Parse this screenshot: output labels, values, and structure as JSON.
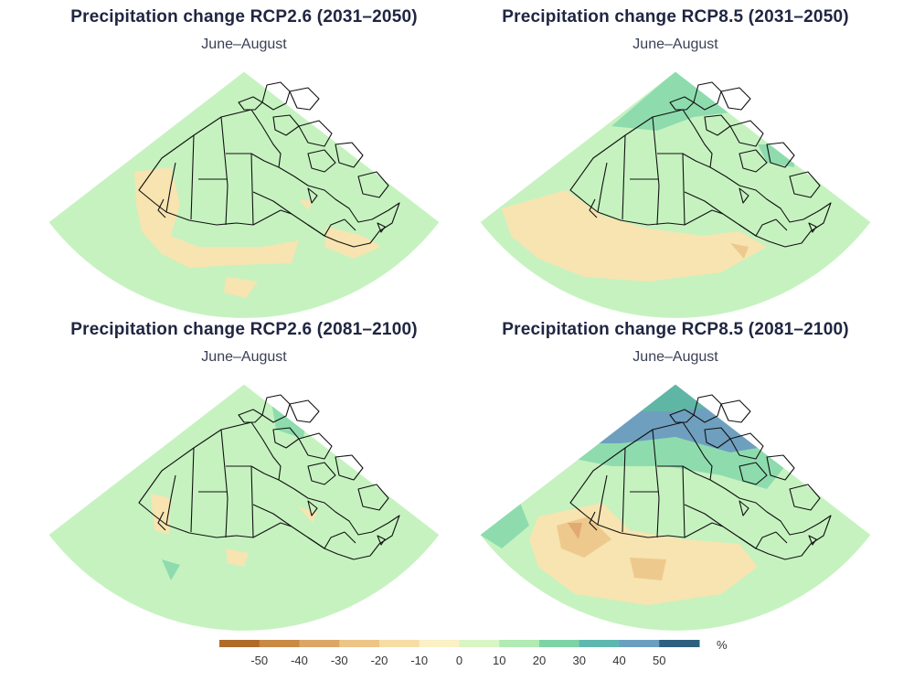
{
  "panels": [
    {
      "title": "Precipitation change RCP2.6 (2031–2050)",
      "subtitle": "June–August"
    },
    {
      "title": "Precipitation change RCP8.5 (2031–2050)",
      "subtitle": "June–August"
    },
    {
      "title": "Precipitation change RCP2.6 (2081–2100)",
      "subtitle": "June–August"
    },
    {
      "title": "Precipitation change RCP8.5 (2081–2100)",
      "subtitle": "June–August"
    }
  ],
  "colorbar": {
    "unit": "%",
    "ticks": [
      "-50",
      "-40",
      "-30",
      "-20",
      "-10",
      "0",
      "10",
      "20",
      "30",
      "40",
      "50"
    ],
    "colors": [
      "#b06a2a",
      "#c98a45",
      "#dca666",
      "#ecc587",
      "#f6dda6",
      "#fbf0c6",
      "#d8f5c4",
      "#b1ebb3",
      "#7dd3a4",
      "#5fb8b0",
      "#6b9fc0",
      "#2e5f7e"
    ]
  },
  "colors": {
    "wet_light": "#c6f2c0",
    "wet_mid": "#8edcae",
    "wet_high": "#5fb6a4",
    "wet_max": "#6f9fbf",
    "dry_light": "#f7e4b0",
    "dry_mid": "#eec98e",
    "dry_high": "#e1aa72"
  }
}
